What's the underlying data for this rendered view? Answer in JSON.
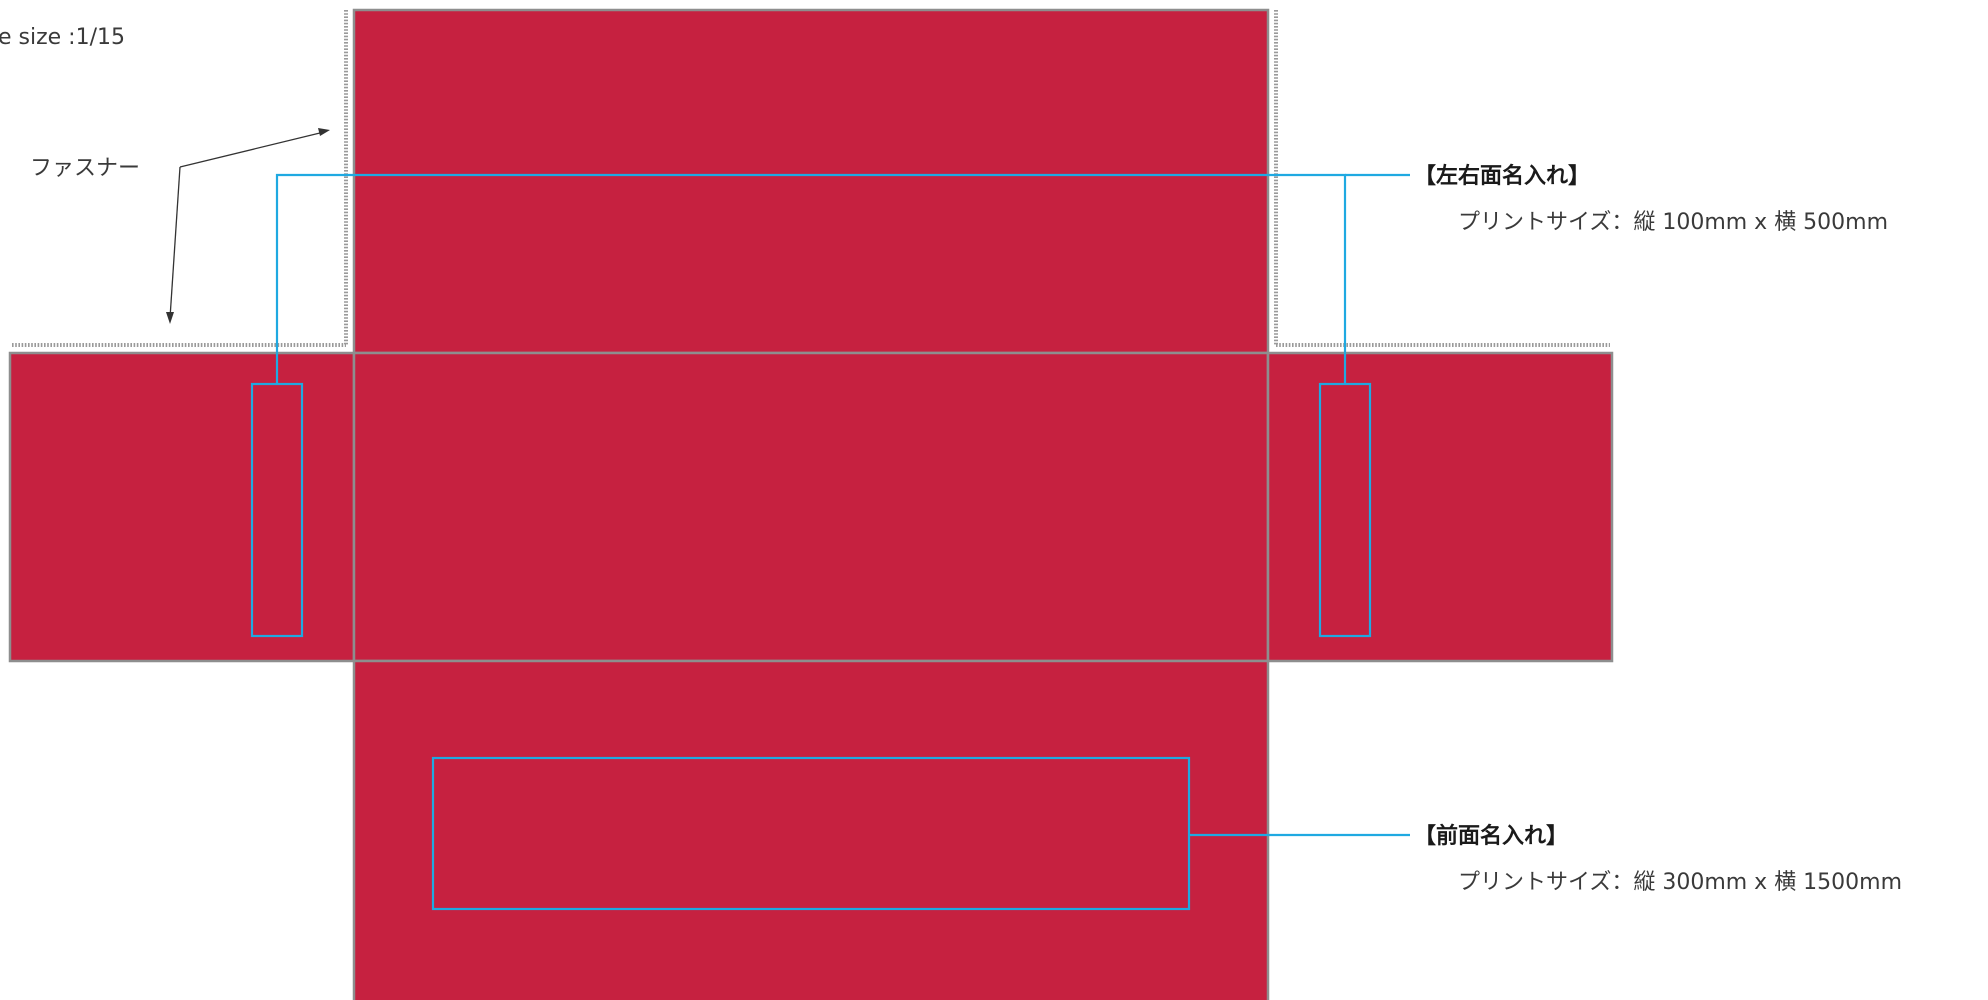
{
  "diagram": {
    "scale_label": "e size :1/15",
    "fastener_label": "ファスナー",
    "side_print": {
      "heading": "【左右面名入れ】",
      "size_text": "プリントサイズ：縦 100mm x 横 500mm"
    },
    "front_print": {
      "heading": "【前面名入れ】",
      "size_text": "プリントサイズ：縦 300mm x 横 1500mm"
    },
    "colors": {
      "panel_fill": "#c62140",
      "panel_outline": "#8e8e8e",
      "print_area": "#1fa9e1",
      "zipper": "#9a9a9a"
    }
  }
}
